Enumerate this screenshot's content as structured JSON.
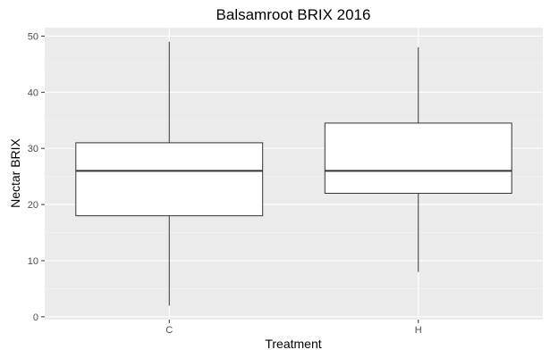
{
  "chart_data": {
    "type": "boxplot",
    "title": "Balsamroot BRIX 2016",
    "xlabel": "Treatment",
    "ylabel": "Nectar BRIX",
    "categories": [
      "C",
      "H"
    ],
    "boxes": [
      {
        "category": "C",
        "min": 2,
        "q1": 18,
        "median": 26,
        "q3": 31,
        "max": 49
      },
      {
        "category": "H",
        "min": 8,
        "q1": 22,
        "median": 26,
        "q3": 34.5,
        "max": 48
      }
    ],
    "ylim": [
      -0.5,
      51.5
    ],
    "yticks": [
      0,
      10,
      20,
      30,
      40,
      50
    ],
    "grid": true,
    "colors": {
      "panel_background": "#ebebeb",
      "grid_major": "#ffffff",
      "grid_minor": "#f5f5f5",
      "box_fill": "#ffffff",
      "box_stroke": "#333333"
    }
  }
}
